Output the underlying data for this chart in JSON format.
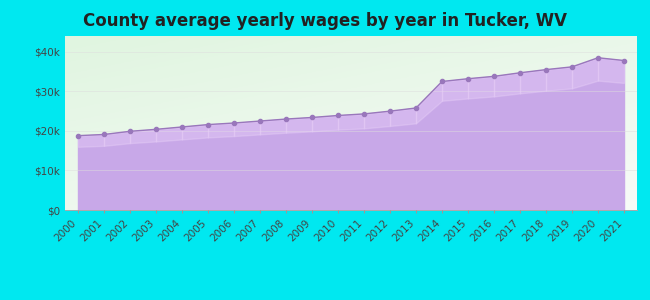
{
  "title": "County average yearly wages by year in Tucker, WV",
  "years": [
    2000,
    2001,
    2002,
    2003,
    2004,
    2005,
    2006,
    2007,
    2008,
    2009,
    2010,
    2011,
    2012,
    2013,
    2014,
    2015,
    2016,
    2017,
    2018,
    2019,
    2020,
    2021
  ],
  "wages": [
    18800,
    19100,
    19900,
    20400,
    21000,
    21600,
    22000,
    22500,
    23000,
    23400,
    23900,
    24300,
    25000,
    25800,
    32500,
    33200,
    33800,
    34700,
    35500,
    36200,
    38500,
    37800
  ],
  "fill_color_top": "#d8b8f0",
  "fill_color_bottom": "#c8a8e8",
  "line_color": "#9977bb",
  "marker_color": "#9977bb",
  "background_outer": "#00e8f0",
  "background_inner_topleft": "#e0f5e0",
  "background_inner_white": "#f5fff5",
  "ylim": [
    0,
    44000
  ],
  "yticks": [
    0,
    10000,
    20000,
    30000,
    40000
  ],
  "ytick_labels": [
    "$0",
    "$10k",
    "$20k",
    "$30k",
    "$40k"
  ],
  "title_fontsize": 12,
  "tick_fontsize": 7.5
}
